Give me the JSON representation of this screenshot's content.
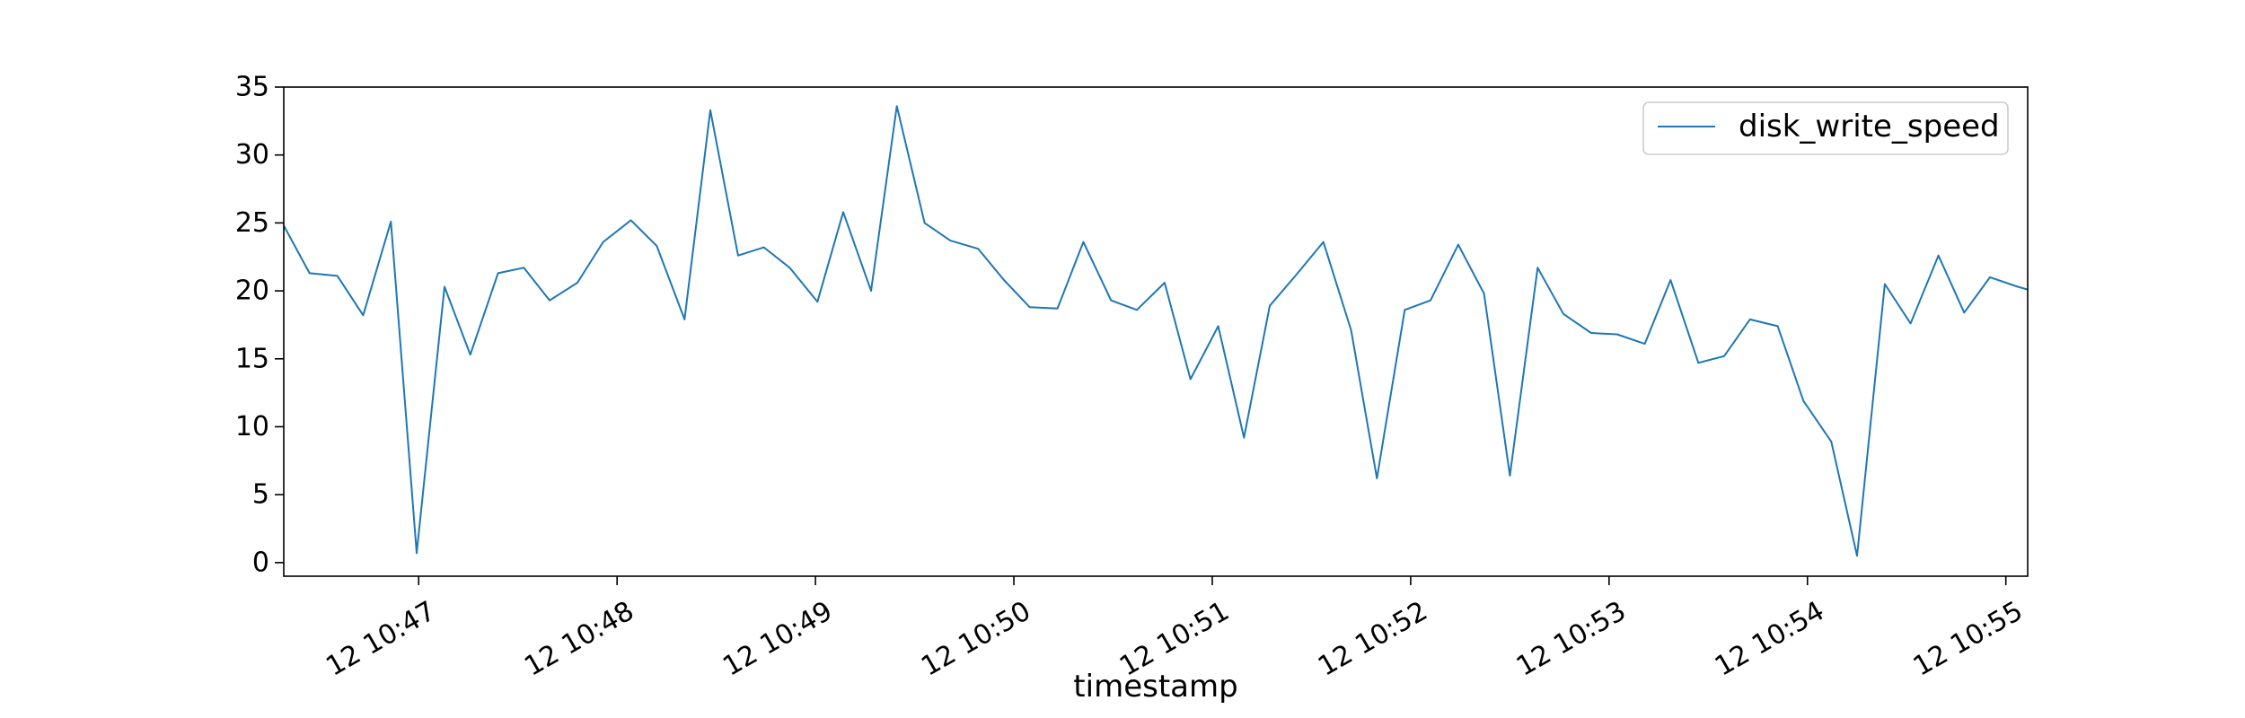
{
  "chart_data": {
    "type": "line",
    "title": "",
    "xlabel": "timestamp",
    "ylabel": "",
    "x_tick_labels": [
      "12 10:47",
      "12 10:48",
      "12 10:49",
      "12 10:50",
      "12 10:51",
      "12 10:52",
      "12 10:53",
      "12 10:54",
      "12 10:55"
    ],
    "x_tick_minutes": [
      47,
      48,
      49,
      50,
      51,
      52,
      53,
      54,
      55
    ],
    "xlim_minutes": [
      46.32,
      55.11
    ],
    "ylim": [
      -1,
      35
    ],
    "y_ticks": [
      0,
      5,
      10,
      15,
      20,
      25,
      30,
      35
    ],
    "grid": false,
    "legend_position": "top-right",
    "line_color": "#1f77b4",
    "series": [
      {
        "name": "disk_write_speed",
        "x_minutes": [
          46.32,
          46.45,
          46.59,
          46.72,
          46.86,
          46.99,
          47.13,
          47.26,
          47.4,
          47.53,
          47.66,
          47.8,
          47.93,
          48.07,
          48.2,
          48.34,
          48.47,
          48.61,
          48.74,
          48.87,
          49.01,
          49.14,
          49.28,
          49.41,
          49.55,
          49.68,
          49.82,
          49.95,
          50.08,
          50.22,
          50.35,
          50.49,
          50.62,
          50.76,
          50.89,
          51.03,
          51.16,
          51.29,
          51.43,
          51.56,
          51.7,
          51.83,
          51.97,
          52.1,
          52.24,
          52.37,
          52.5,
          52.64,
          52.77,
          52.91,
          53.04,
          53.18,
          53.31,
          53.45,
          53.58,
          53.71,
          53.85,
          53.98,
          54.12,
          54.25,
          54.39,
          54.52,
          54.66,
          54.79,
          54.92,
          55.06,
          55.11
        ],
        "values": [
          24.8,
          21.3,
          21.1,
          18.2,
          25.1,
          0.7,
          20.3,
          15.3,
          21.3,
          21.7,
          19.3,
          20.6,
          23.6,
          25.2,
          23.3,
          17.9,
          33.3,
          22.6,
          23.2,
          21.7,
          19.2,
          25.8,
          20.0,
          33.6,
          25.0,
          23.7,
          23.1,
          20.8,
          18.8,
          18.7,
          23.6,
          19.3,
          18.6,
          20.6,
          13.5,
          17.4,
          9.2,
          18.9,
          21.3,
          23.6,
          17.1,
          6.2,
          18.6,
          19.3,
          23.4,
          19.8,
          6.4,
          21.7,
          18.3,
          16.9,
          16.8,
          16.1,
          20.8,
          14.7,
          15.2,
          17.9,
          17.4,
          11.9,
          8.9,
          0.5,
          20.5,
          17.6,
          22.6,
          18.4,
          21.0,
          20.3,
          20.1
        ]
      }
    ]
  }
}
